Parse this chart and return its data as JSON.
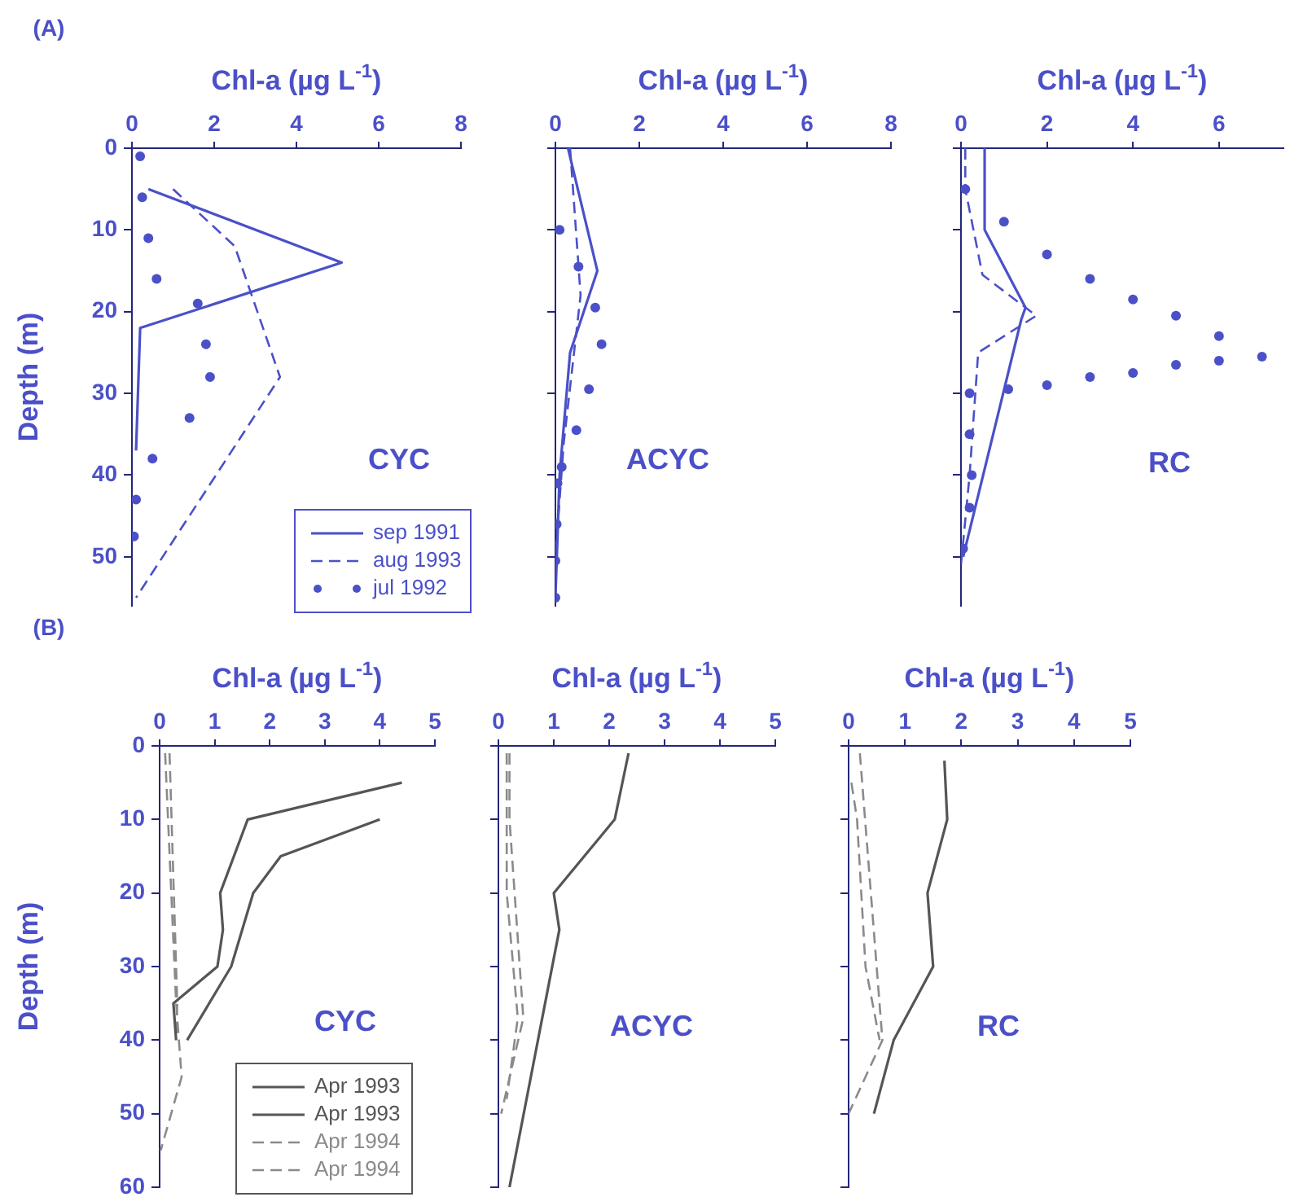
{
  "chart_data": [
    {
      "type": "line",
      "xlabel": "Chl-a (µg L$^{-1}$)",
      "ylabel": "Depth (m)",
      "xlim": [
        0,
        8
      ],
      "xticks": [
        0,
        2,
        4,
        6,
        8
      ],
      "ylim": [
        56,
        0
      ],
      "yticks": [
        0,
        10,
        20,
        30,
        40,
        50
      ],
      "legend": "bottom right",
      "annotations": [
        "(A)",
        "CYC"
      ],
      "series": [
        {
          "name": "sep 1991",
          "type": "line",
          "color": "#4b50c8",
          "line_style": "solid",
          "marker": "none",
          "x": [
            0.4,
            5.1,
            0.2,
            0.1
          ],
          "values": [
            5,
            14,
            22,
            37
          ]
        },
        {
          "name": "aug 1993",
          "type": "line",
          "color": "#4b50c8",
          "line_style": "dashed",
          "marker": "none",
          "x": [
            1.0,
            2.5,
            3.6,
            0.1
          ],
          "values": [
            5,
            12,
            28,
            55
          ]
        },
        {
          "name": "jul 1992",
          "type": "scatter",
          "color": "#4b50c8",
          "marker": "circle",
          "x": [
            0.2,
            0.25,
            0.4,
            0.6,
            1.6,
            1.8,
            1.9,
            1.4,
            0.5,
            0.1,
            0.05
          ],
          "values": [
            1,
            6,
            11,
            16,
            19,
            24,
            28,
            33,
            38,
            43,
            47.5
          ]
        }
      ]
    },
    {
      "type": "line",
      "xlabel": "Chl-a (µg L$^{-1}$)",
      "xlim": [
        0,
        8
      ],
      "xticks": [
        0,
        2,
        4,
        6,
        8
      ],
      "ylim": [
        56,
        0
      ],
      "yticks": [
        0,
        10,
        20,
        30,
        40,
        50
      ],
      "tick_labels": "x",
      "annotations": [
        "ACYC"
      ],
      "series": [
        {
          "type": "line",
          "color": "#4b50c8",
          "line_style": "solid",
          "marker": "none",
          "x": [
            0.3,
            1.0,
            0.35,
            0.1,
            0
          ],
          "values": [
            0,
            15,
            25,
            40,
            55
          ]
        },
        {
          "type": "line",
          "color": "#4b50c8",
          "line_style": "dashed",
          "marker": "none",
          "x": [
            0.35,
            0.6,
            0.2,
            0
          ],
          "values": [
            0,
            18,
            36,
            50
          ]
        },
        {
          "type": "scatter",
          "color": "#4b50c8",
          "marker": "circle",
          "x": [
            0.1,
            0.55,
            0.95,
            1.1,
            0.8,
            0.5,
            0.15,
            0.05,
            0.03,
            0,
            0
          ],
          "values": [
            10,
            14.5,
            19.5,
            24,
            29.5,
            34.5,
            39,
            41,
            46,
            50.5,
            55
          ]
        }
      ]
    },
    {
      "type": "line",
      "xlabel": "Chl-a (µg L$^{-1}$)",
      "xlim": [
        0,
        7.5
      ],
      "xticks": [
        0,
        2,
        4,
        6
      ],
      "ylim": [
        56,
        0
      ],
      "yticks": [
        0,
        10,
        20,
        30,
        40,
        50
      ],
      "tick_labels": "x",
      "annotations": [
        "RC"
      ],
      "series": [
        {
          "type": "line",
          "color": "#4b50c8",
          "line_style": "solid",
          "marker": "none",
          "x": [
            0.55,
            0.55,
            1.5,
            1.4,
            0.05
          ],
          "values": [
            0,
            10,
            19.5,
            21,
            50
          ]
        },
        {
          "type": "line",
          "color": "#4b50c8",
          "line_style": "dashed",
          "marker": "none",
          "x": [
            0.1,
            0.1,
            0.5,
            1.75,
            0.4,
            0.2,
            0
          ],
          "values": [
            0,
            5,
            15.5,
            20.5,
            25,
            40,
            51
          ]
        },
        {
          "type": "scatter",
          "color": "#4b50c8",
          "marker": "circle",
          "x": [
            0.1,
            1.0,
            2,
            3,
            4,
            5,
            6,
            7,
            6,
            5,
            4,
            3,
            2,
            1.1,
            0.2,
            0.2,
            0.25,
            0.2,
            0.05
          ],
          "values": [
            5,
            9,
            13,
            16,
            18.5,
            20.5,
            23,
            25.5,
            26,
            26.5,
            27.5,
            28,
            29,
            29.5,
            30,
            35,
            40,
            44,
            49
          ]
        }
      ]
    },
    {
      "type": "line",
      "xlabel": "Chl-a (µg L$^{-1}$)",
      "ylabel": "Depth (m)",
      "xlim": [
        0,
        5
      ],
      "xticks": [
        0,
        1,
        2,
        3,
        4,
        5
      ],
      "ylim": [
        60,
        0
      ],
      "yticks": [
        0,
        10,
        20,
        30,
        40,
        50,
        60
      ],
      "legend": "bottom right",
      "annotations": [
        "(B)",
        "CYC"
      ],
      "series": [
        {
          "name": "Apr 1993",
          "type": "line",
          "color": "#555555",
          "line_style": "solid",
          "marker": "none",
          "x": [
            4.4,
            1.6,
            1.1,
            1.15,
            1.05,
            0.25,
            0.3
          ],
          "values": [
            5,
            10,
            20,
            25,
            30,
            35,
            40
          ]
        },
        {
          "name": "Apr 1993",
          "type": "line",
          "color": "#555555",
          "line_style": "solid",
          "marker": "none",
          "x": [
            4.0,
            2.2,
            1.7,
            1.3,
            0.5
          ],
          "values": [
            10,
            15,
            20,
            30,
            40
          ]
        },
        {
          "name": "Apr 1994",
          "type": "line",
          "color": "#8a8a8a",
          "line_style": "dashed",
          "marker": "none",
          "x": [
            0.1,
            0.3,
            0.4,
            0.02
          ],
          "values": [
            1,
            35,
            45,
            55
          ]
        },
        {
          "name": "Apr 1994",
          "type": "line",
          "color": "#8a8a8a",
          "line_style": "dashed",
          "marker": "none",
          "x": [
            0.18,
            0.32,
            0.3
          ],
          "values": [
            1,
            35,
            40
          ]
        }
      ]
    },
    {
      "type": "line",
      "xlabel": "Chl-a (µg L$^{-1}$)",
      "xlim": [
        0,
        5
      ],
      "xticks": [
        0,
        1,
        2,
        3,
        4,
        5
      ],
      "ylim": [
        60,
        0
      ],
      "yticks": [
        0,
        10,
        20,
        30,
        40,
        50,
        60
      ],
      "tick_labels": "x",
      "annotations": [
        "ACYC"
      ],
      "series": [
        {
          "type": "line",
          "color": "#555555",
          "line_style": "solid",
          "marker": "none",
          "x": [
            2.35,
            2.1,
            1.0,
            1.1,
            0.2
          ],
          "values": [
            1,
            10,
            20,
            25,
            60
          ]
        },
        {
          "type": "line",
          "color": "#8a8a8a",
          "line_style": "dashed",
          "marker": "none",
          "x": [
            0.2,
            0.2,
            0.45,
            0.05
          ],
          "values": [
            1,
            10,
            37,
            50
          ]
        },
        {
          "type": "line",
          "color": "#8a8a8a",
          "line_style": "dashed",
          "marker": "none",
          "x": [
            0.15,
            0.15,
            0.35,
            0.15
          ],
          "values": [
            1,
            20,
            37,
            48
          ]
        }
      ]
    },
    {
      "type": "line",
      "xlabel": "Chl-a (µg L$^{-1}$)",
      "xlim": [
        0,
        5
      ],
      "xticks": [
        0,
        1,
        2,
        3,
        4,
        5
      ],
      "ylim": [
        60,
        0
      ],
      "yticks": [
        0,
        10,
        20,
        30,
        40,
        50,
        60
      ],
      "tick_labels": "x",
      "annotations": [
        "RC"
      ],
      "series": [
        {
          "type": "line",
          "color": "#555555",
          "line_style": "solid",
          "marker": "none",
          "x": [
            1.7,
            1.75,
            1.4,
            1.5,
            0.8,
            0.45
          ],
          "values": [
            2,
            10,
            20,
            30,
            40,
            50
          ]
        },
        {
          "type": "line",
          "color": "#8a8a8a",
          "line_style": "dashed",
          "marker": "none",
          "x": [
            0.2,
            0.6,
            0
          ],
          "values": [
            1,
            40,
            50
          ]
        },
        {
          "type": "line",
          "color": "#8a8a8a",
          "line_style": "dashed",
          "marker": "none",
          "x": [
            0.05,
            0.15,
            0.3,
            0.55
          ],
          "values": [
            5,
            10,
            30,
            40
          ]
        }
      ]
    }
  ]
}
